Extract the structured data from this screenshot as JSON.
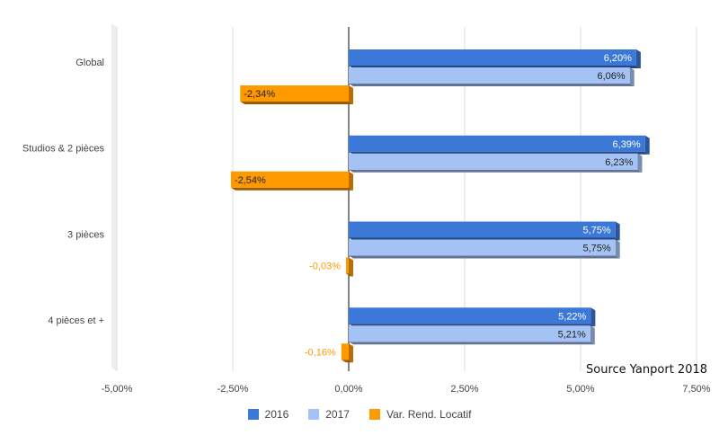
{
  "chart_data": {
    "type": "bar",
    "orientation": "horizontal",
    "title": "",
    "xlabel": "",
    "ylabel": "",
    "categories": [
      "Global",
      "Studios & 2 pièces",
      "3 pièces",
      "4 pièces et +"
    ],
    "series": [
      {
        "name": "2016",
        "color": "#3c78d8",
        "values": [
          6.2,
          6.39,
          5.75,
          5.22
        ],
        "labels": [
          "6,20%",
          "6,39%",
          "5,75%",
          "5,22%"
        ]
      },
      {
        "name": "2017",
        "color": "#a4c2f4",
        "values": [
          6.06,
          6.23,
          5.75,
          5.21
        ],
        "labels": [
          "6,06%",
          "6,23%",
          "5,75%",
          "5,21%"
        ]
      },
      {
        "name": "Var. Rend. Locatif",
        "color": "#ff9900",
        "values": [
          -2.34,
          -2.54,
          -0.03,
          -0.16
        ],
        "labels": [
          "-2,34%",
          "-2,54%",
          "-0,03%",
          "-0,16%"
        ]
      }
    ],
    "xlim": [
      -5,
      7.5
    ],
    "ticks": [
      -5,
      -2.5,
      0,
      2.5,
      5,
      7.5
    ],
    "tick_labels": [
      "-5,00%",
      "-2,50%",
      "0,00%",
      "2,50%",
      "5,00%",
      "7,50%"
    ],
    "grid": true,
    "legend_position": "bottom"
  },
  "annotation": "Source Yanport 2018"
}
